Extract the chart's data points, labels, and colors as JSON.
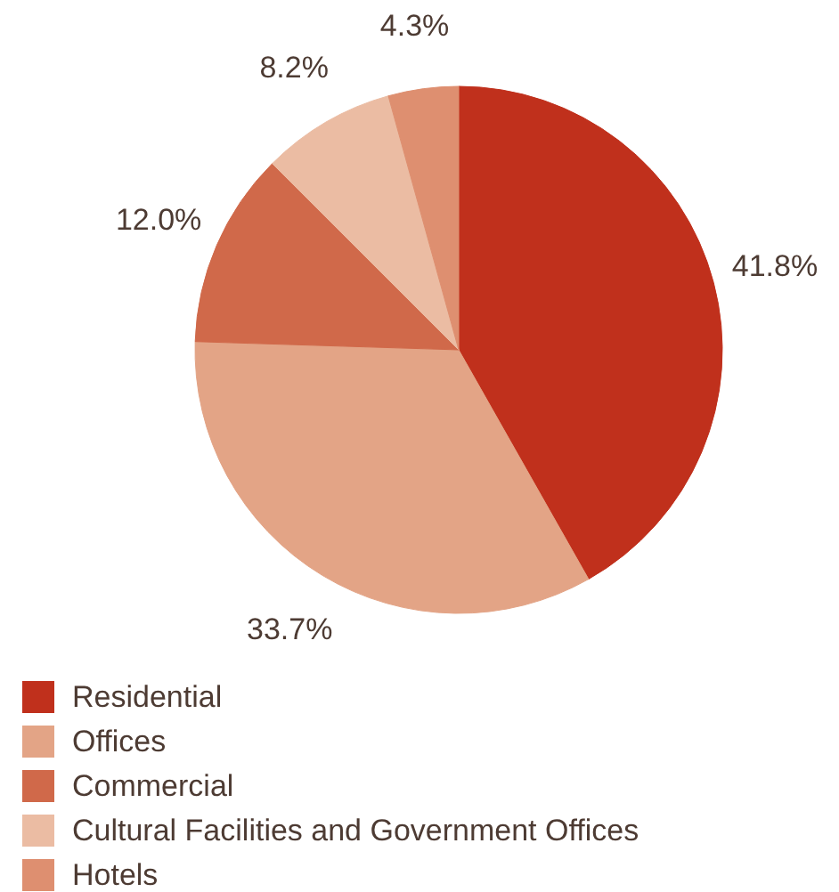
{
  "chart_data": {
    "type": "pie",
    "categories": [
      "Residential",
      "Offices",
      "Commercial",
      "Cultural Facilities and Government Offices",
      "Hotels"
    ],
    "values": [
      41.8,
      33.7,
      12.0,
      8.2,
      4.3
    ],
    "value_labels": [
      "41.8%",
      "33.7%",
      "12.0%",
      "8.2%",
      "4.3%"
    ],
    "colors": [
      "#c0301c",
      "#e3a486",
      "#d0694a",
      "#ebbca3",
      "#de8f70"
    ],
    "legend": "bottom"
  }
}
